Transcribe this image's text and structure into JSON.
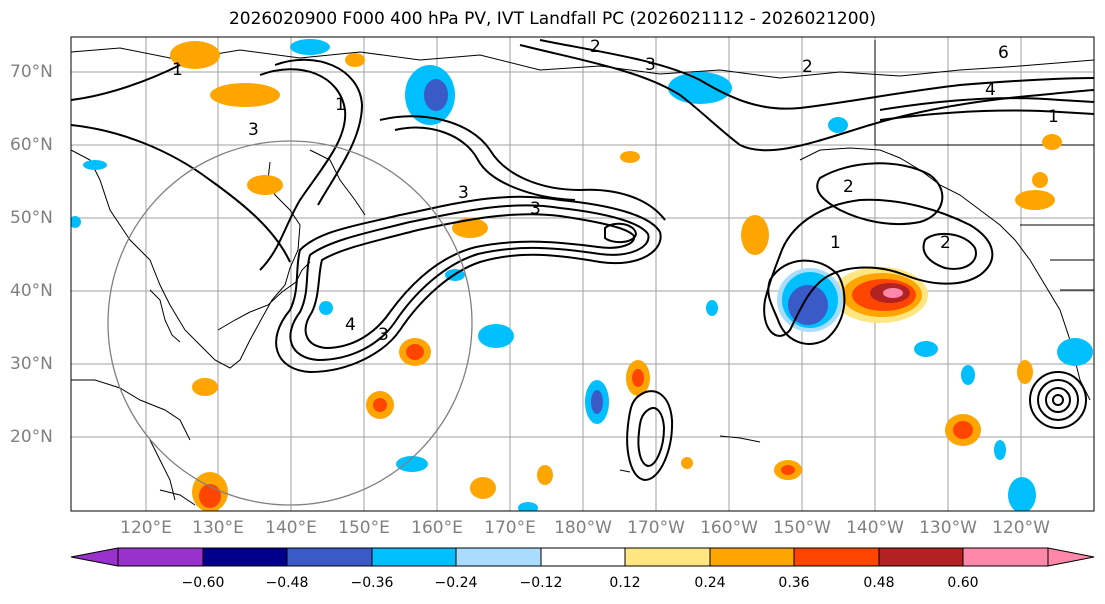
{
  "title": "2026020900 F000 400 hPa PV, IVT Landfall PC (2026021112 - 2026021200)",
  "lat_labels": [
    "70°N",
    "60°N",
    "50°N",
    "40°N",
    "30°N",
    "20°N"
  ],
  "lon_labels": [
    "120°E",
    "130°E",
    "140°E",
    "150°E",
    "160°E",
    "170°E",
    "180°W",
    "170°W",
    "160°W",
    "150°W",
    "140°W",
    "130°W",
    "120°W"
  ],
  "colorbar": {
    "tick_labels": [
      "−0.60",
      "−0.48",
      "−0.36",
      "−0.24",
      "−0.12",
      "0.12",
      "0.24",
      "0.36",
      "0.48",
      "0.60"
    ],
    "colors": [
      "#9932cc",
      "#00008b",
      "#3a5bc7",
      "#00bfff",
      "#aadcff",
      "#ffffff",
      "#ffe680",
      "#ffa500",
      "#ff4500",
      "#b22222",
      "#ff88aa"
    ]
  },
  "contour_labels": [
    "1",
    "2",
    "3",
    "4",
    "6"
  ],
  "colors": {
    "grid": "#a0a0a0",
    "contour": "#000000",
    "coast": "#000000",
    "ring": "#808080",
    "axis_text": "#808080"
  }
}
